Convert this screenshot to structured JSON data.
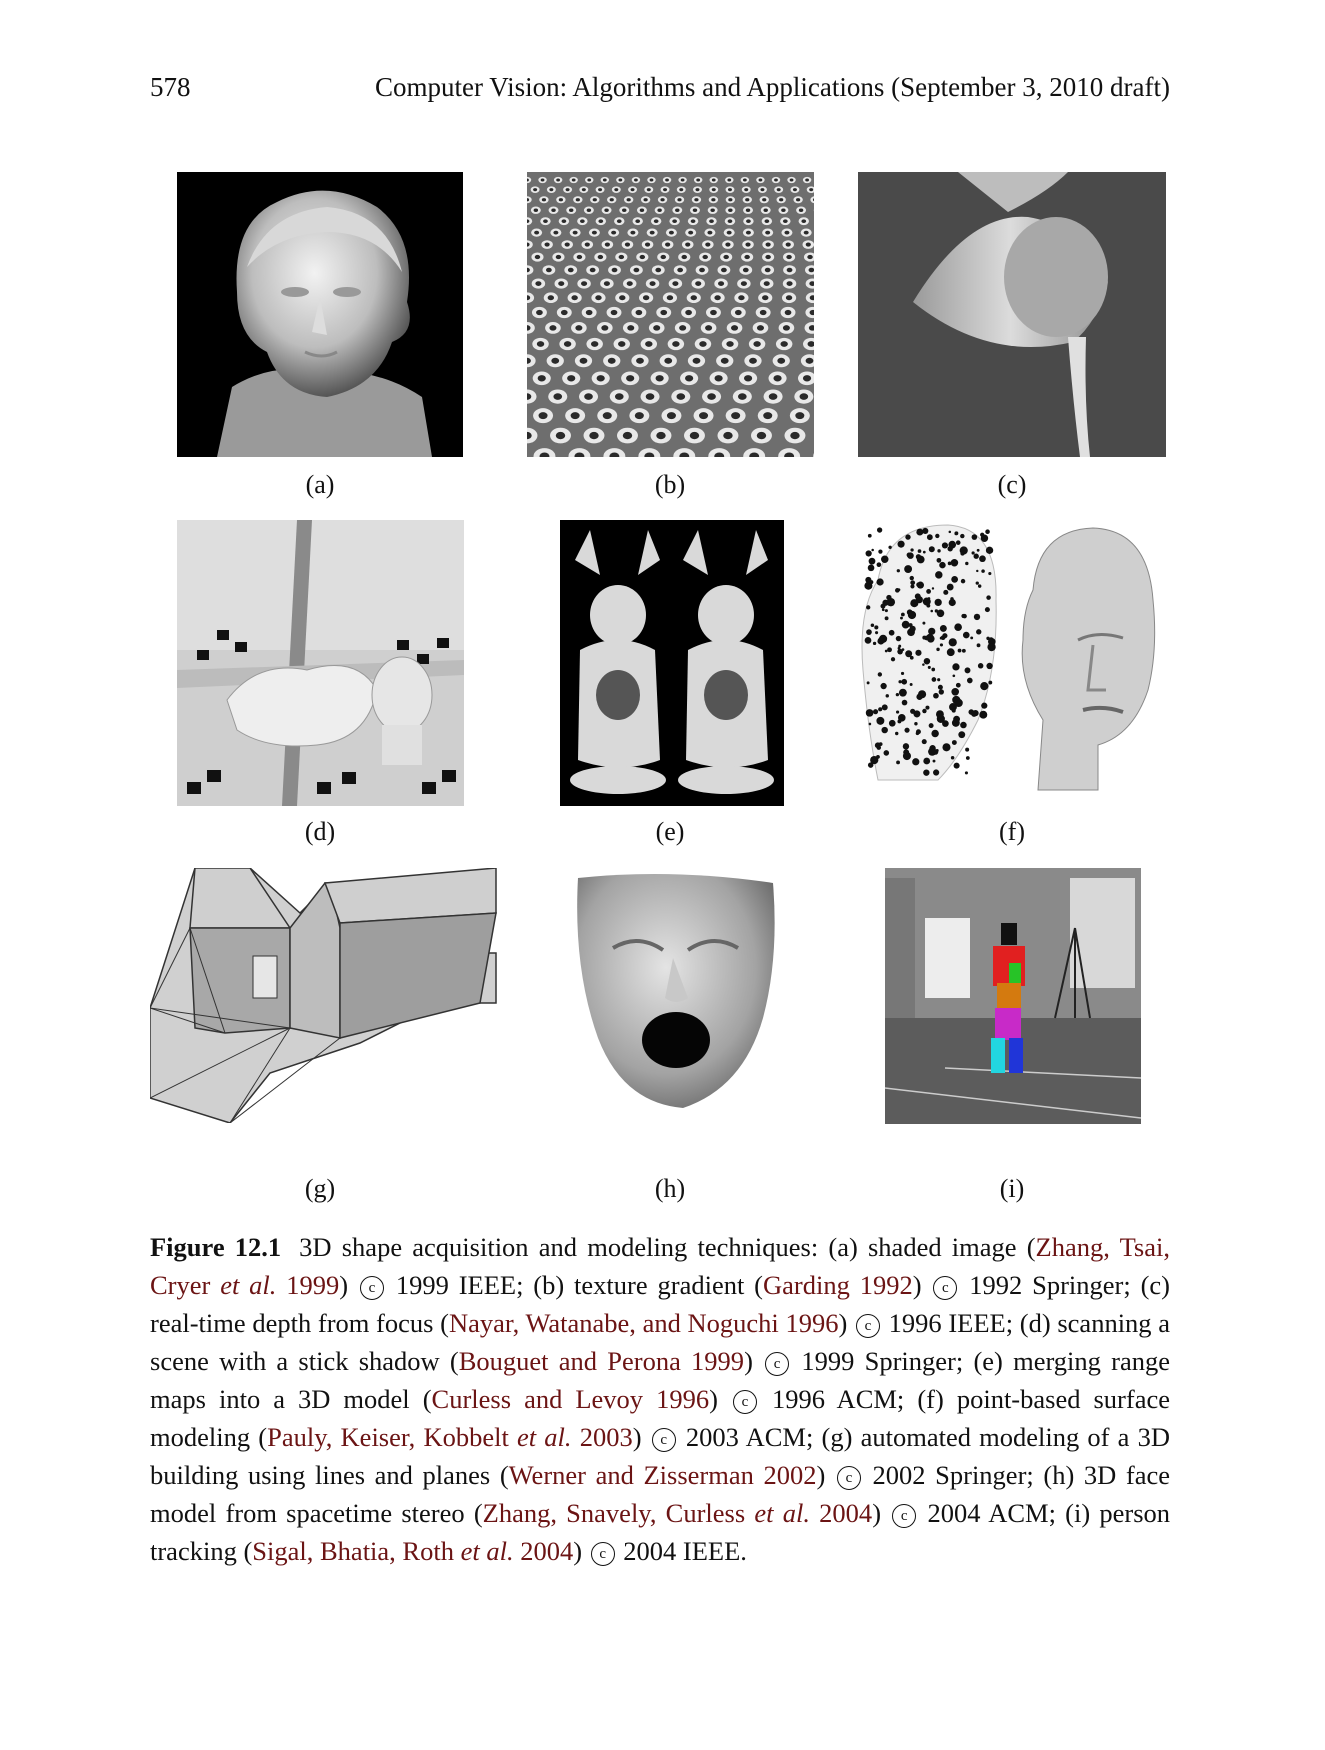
{
  "header": {
    "page_number": "578",
    "book_title": "Computer Vision: Algorithms and Applications (September 3, 2010 draft)"
  },
  "figure": {
    "panels": [
      {
        "label": "(a)",
        "icon": "shaded-bust-image"
      },
      {
        "label": "(b)",
        "icon": "texture-gradient-dots"
      },
      {
        "label": "(c)",
        "icon": "depth-from-focus-cup"
      },
      {
        "label": "(d)",
        "icon": "stick-shadow-scene"
      },
      {
        "label": "(e)",
        "icon": "merged-range-buddha"
      },
      {
        "label": "(f)",
        "icon": "point-based-heads"
      },
      {
        "label": "(g)",
        "icon": "building-model"
      },
      {
        "label": "(h)",
        "icon": "face-model"
      },
      {
        "label": "(i)",
        "icon": "person-tracking"
      }
    ],
    "caption": {
      "figure_id": "Figure 12.1",
      "c": "c",
      "t1": "3D shape acquisition and modeling techniques: (a) shaded image (",
      "r1": "Zhang, Tsai, Cryer ",
      "r1b": " 1999",
      "t2": ") ",
      "t3": " 1999 IEEE; (b) texture gradient (",
      "r2": "Garding 1992",
      "t4": ") ",
      "t5": " 1992 Springer; (c) real-time depth from focus (",
      "r3": "Nayar, Watanabe, and Noguchi 1996",
      "t6": ") ",
      "t7": " 1996 IEEE; (d) scanning a scene with a stick shadow (",
      "r4": "Bouguet and Perona 1999",
      "t8": ") ",
      "t9": " 1999 Springer; (e) merging range maps into a 3D model (",
      "r5": "Curless and Levoy 1996",
      "t10": ") ",
      "t11": " 1996 ACM; (f) point-based surface modeling (",
      "r6": "Pauly, Keiser, Kobbelt ",
      "r6b": " 2003",
      "t12": ") ",
      "t13": " 2003 ACM; (g) automated modeling of a 3D building using lines and planes (",
      "r7": "Werner and Zisserman 2002",
      "t14": ") ",
      "t15": " 2002 Springer; (h) 3D face model from spacetime stereo (",
      "r8": "Zhang, Snavely, Curless ",
      "r8b": " 2004",
      "t16": ") ",
      "t17": " 2004 ACM; (i) person tracking (",
      "r9": "Sigal, Bhatia, Roth ",
      "r9b": " 2004",
      "t18": ") ",
      "t19": " 2004 IEEE.",
      "etal": "et al."
    }
  }
}
